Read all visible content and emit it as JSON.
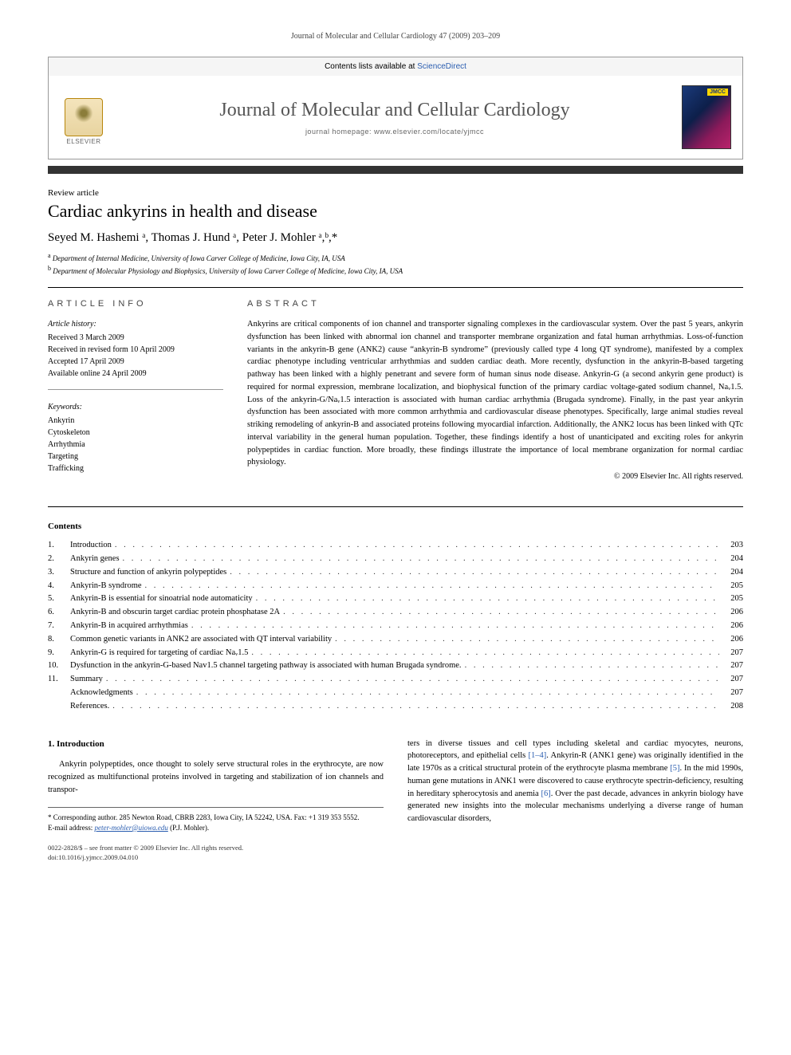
{
  "running_header": "Journal of Molecular and Cellular Cardiology 47 (2009) 203–209",
  "masthead": {
    "contents_line_prefix": "Contents lists available at ",
    "contents_link": "ScienceDirect",
    "journal_title": "Journal of Molecular and Cellular Cardiology",
    "homepage_prefix": "journal homepage: ",
    "homepage_url": "www.elsevier.com/locate/yjmcc",
    "elsevier_label": "ELSEVIER",
    "cover_label": "JMCC"
  },
  "article": {
    "type": "Review article",
    "title": "Cardiac ankyrins in health and disease",
    "authors_line": "Seyed M. Hashemi ᵃ, Thomas J. Hund ᵃ, Peter J. Mohler ᵃ,ᵇ,*",
    "affiliations": [
      {
        "sup": "a",
        "text": "Department of Internal Medicine, University of Iowa Carver College of Medicine, Iowa City, IA, USA"
      },
      {
        "sup": "b",
        "text": "Department of Molecular Physiology and Biophysics, University of Iowa Carver College of Medicine, Iowa City, IA, USA"
      }
    ]
  },
  "info": {
    "heading": "ARTICLE INFO",
    "history_label": "Article history:",
    "history": [
      "Received 3 March 2009",
      "Received in revised form 10 April 2009",
      "Accepted 17 April 2009",
      "Available online 24 April 2009"
    ],
    "keywords_label": "Keywords:",
    "keywords": [
      "Ankyrin",
      "Cytoskeleton",
      "Arrhythmia",
      "Targeting",
      "Trafficking"
    ]
  },
  "abstract": {
    "heading": "ABSTRACT",
    "text": "Ankyrins are critical components of ion channel and transporter signaling complexes in the cardiovascular system. Over the past 5 years, ankyrin dysfunction has been linked with abnormal ion channel and transporter membrane organization and fatal human arrhythmias. Loss-of-function variants in the ankyrin-B gene (ANK2) cause “ankyrin-B syndrome” (previously called type 4 long QT syndrome), manifested by a complex cardiac phenotype including ventricular arrhythmias and sudden cardiac death. More recently, dysfunction in the ankyrin-B-based targeting pathway has been linked with a highly penetrant and severe form of human sinus node disease. Ankyrin-G (a second ankyrin gene product) is required for normal expression, membrane localization, and biophysical function of the primary cardiac voltage-gated sodium channel, Naᵥ1.5. Loss of the ankyrin-G/Naᵥ1.5 interaction is associated with human cardiac arrhythmia (Brugada syndrome). Finally, in the past year ankyrin dysfunction has been associated with more common arrhythmia and cardiovascular disease phenotypes. Specifically, large animal studies reveal striking remodeling of ankyrin-B and associated proteins following myocardial infarction. Additionally, the ANK2 locus has been linked with QTc interval variability in the general human population. Together, these findings identify a host of unanticipated and exciting roles for ankyrin polypeptides in cardiac function. More broadly, these findings illustrate the importance of local membrane organization for normal cardiac physiology.",
    "copyright": "© 2009 Elsevier Inc. All rights reserved."
  },
  "toc": {
    "heading": "Contents",
    "items": [
      {
        "n": "1.",
        "t": "Introduction",
        "p": "203"
      },
      {
        "n": "2.",
        "t": "Ankyrin genes",
        "p": "204"
      },
      {
        "n": "3.",
        "t": "Structure and function of ankyrin polypeptides",
        "p": "204"
      },
      {
        "n": "4.",
        "t": "Ankyrin-B syndrome",
        "p": "205"
      },
      {
        "n": "5.",
        "t": "Ankyrin-B is essential for sinoatrial node automaticity",
        "p": "205"
      },
      {
        "n": "6.",
        "t": "Ankyrin-B and obscurin target cardiac protein phosphatase 2A",
        "p": "206"
      },
      {
        "n": "7.",
        "t": "Ankyrin-B in acquired arrhythmias",
        "p": "206"
      },
      {
        "n": "8.",
        "t": "Common genetic variants in ANK2 are associated with QT interval variability",
        "p": "206"
      },
      {
        "n": "9.",
        "t": "Ankyrin-G is required for targeting of cardiac Naᵥ1.5",
        "p": "207"
      },
      {
        "n": "10.",
        "t": "Dysfunction in the ankyrin-G-based Nav1.5 channel targeting pathway is associated with human Brugada syndrome.",
        "p": "207"
      },
      {
        "n": "11.",
        "t": "Summary",
        "p": "207"
      },
      {
        "n": "",
        "t": "Acknowledgments",
        "p": "207"
      },
      {
        "n": "",
        "t": "References.",
        "p": "208"
      }
    ]
  },
  "body": {
    "section1_heading": "1. Introduction",
    "col1_p1": "Ankyrin polypeptides, once thought to solely serve structural roles in the erythrocyte, are now recognized as multifunctional proteins involved in targeting and stabilization of ion channels and transpor-",
    "col2_p1_a": "ters in diverse tissues and cell types including skeletal and cardiac myocytes, neurons, photoreceptors, and epithelial cells ",
    "col2_ref1": "[1–4]",
    "col2_p1_b": ". Ankyrin-R (ANK1 gene) was originally identified in the late 1970s as a critical structural protein of the erythrocyte plasma membrane ",
    "col2_ref2": "[5]",
    "col2_p1_c": ". In the mid 1990s, human gene mutations in ANK1 were discovered to cause erythrocyte spectrin-deficiency, resulting in hereditary spherocytosis and anemia ",
    "col2_ref3": "[6]",
    "col2_p1_d": ". Over the past decade, advances in ankyrin biology have generated new insights into the molecular mechanisms underlying a diverse range of human cardiovascular disorders,"
  },
  "footnotes": {
    "corr": "* Corresponding author. 285 Newton Road, CBRB 2283, Iowa City, IA 52242, USA. Fax: +1 319 353 5552.",
    "email_label": "E-mail address: ",
    "email": "peter-mohler@uiowa.edu",
    "email_suffix": " (P.J. Mohler)."
  },
  "bottom": {
    "line1": "0022-2828/$ – see front matter © 2009 Elsevier Inc. All rights reserved.",
    "line2": "doi:10.1016/j.yjmcc.2009.04.010"
  },
  "colors": {
    "link": "#2a5db0",
    "text": "#000000",
    "muted": "#666666",
    "divider": "#333333",
    "border": "#999999"
  }
}
